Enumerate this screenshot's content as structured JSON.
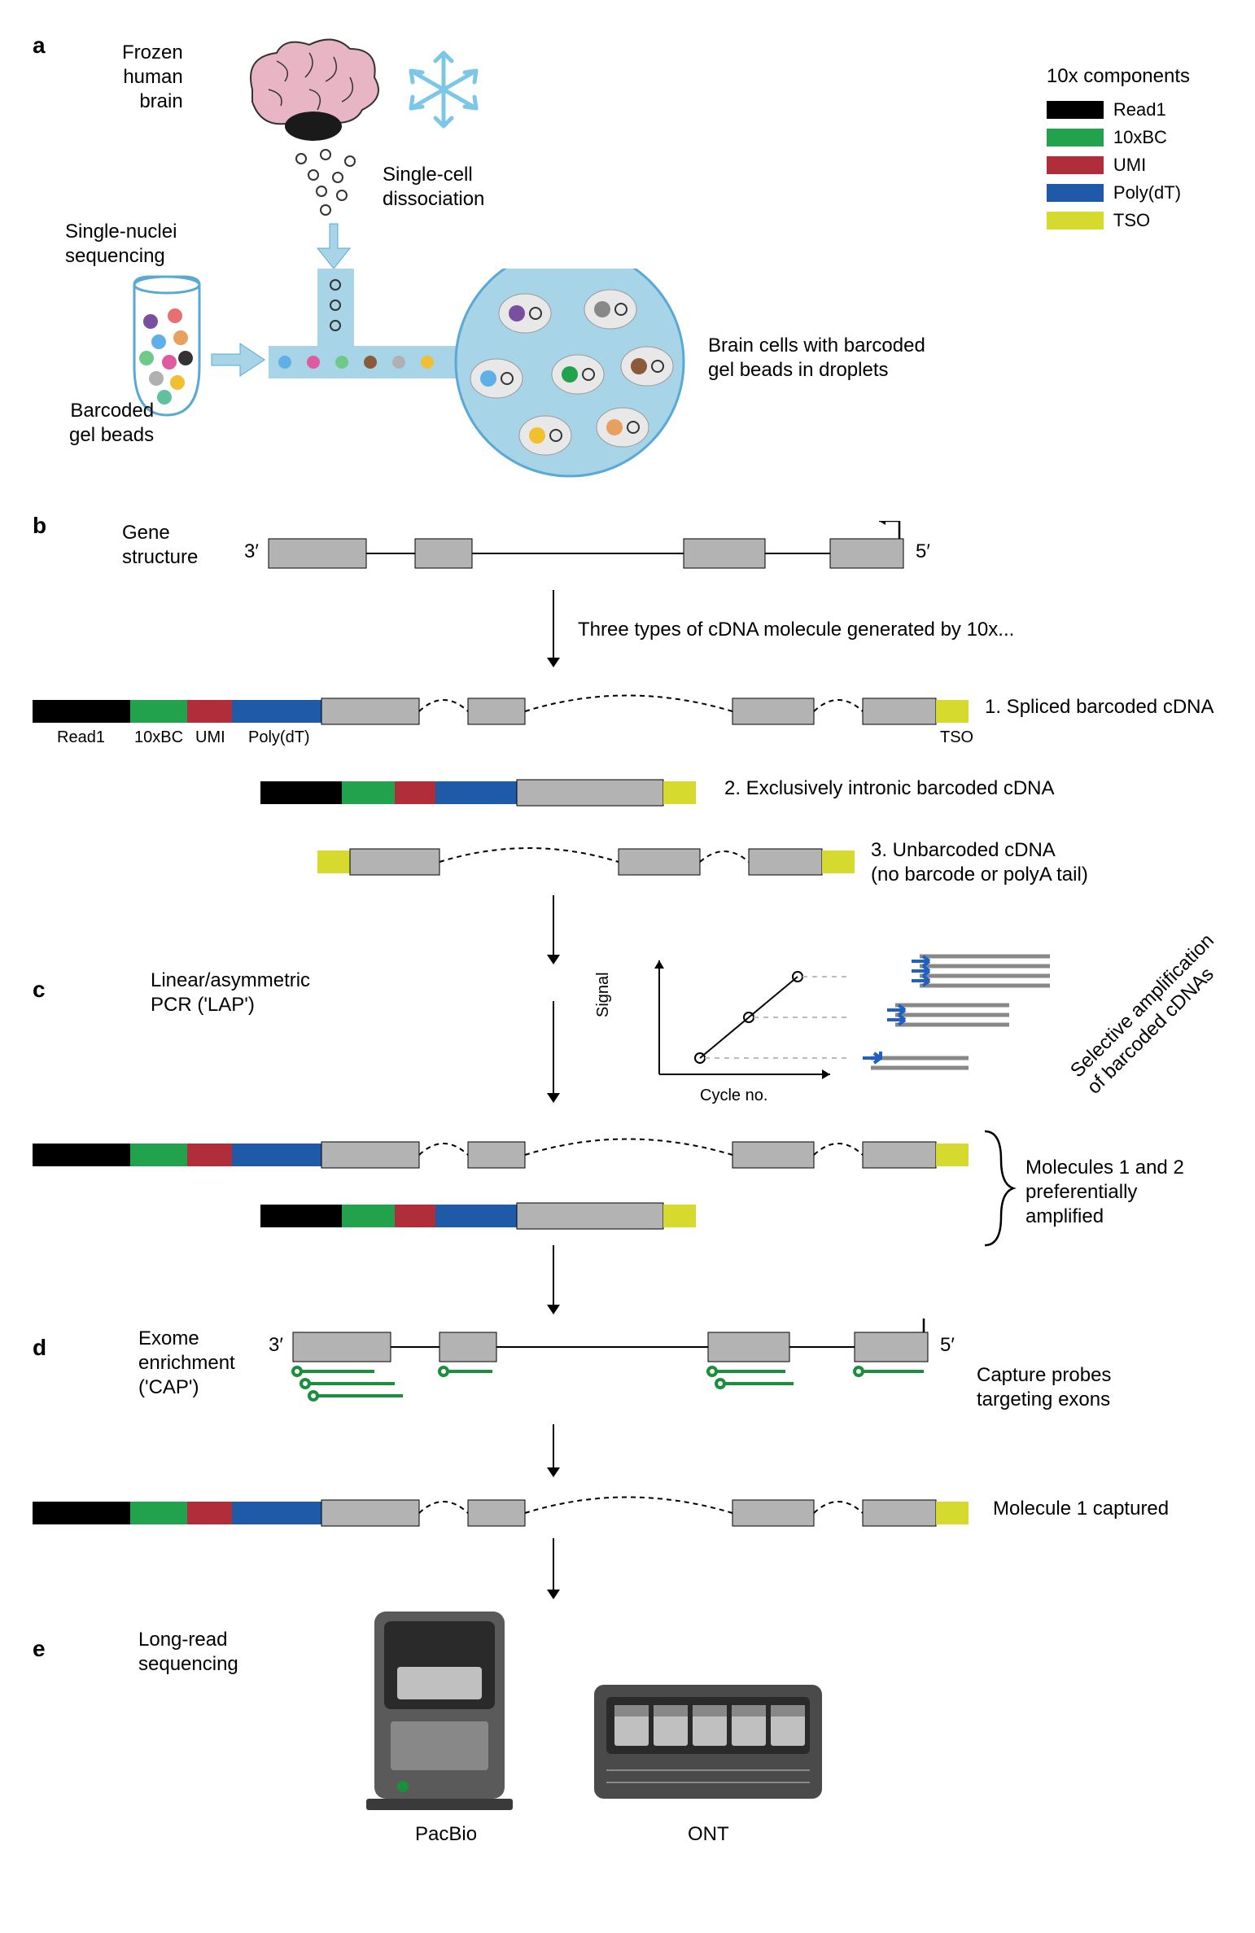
{
  "colors": {
    "read1": "#000000",
    "bc10x": "#23a24d",
    "umi": "#b02e3a",
    "polydt": "#1e5aa8",
    "tso": "#d6d92e",
    "exon": "#b3b3b3",
    "brain_pink": "#e8b5c5",
    "brain_outline": "#333333",
    "snowflake": "#7cc6e8",
    "droplet_blue": "#a8d4e8",
    "droplet_stroke": "#5aa8d4",
    "probe_green": "#1a8f3c",
    "machine_gray": "#5a5a5a",
    "machine_light": "#c0c0c0",
    "arrow_blue": "#2060c0"
  },
  "panelA": {
    "label": "a",
    "brain_label": "Frozen\nhuman\nbrain",
    "dissociation_label": "Single-cell\ndissociation",
    "sequencing_label": "Single-nuclei\nsequencing",
    "beads_label": "Barcoded\ngel beads",
    "droplet_label": "Brain cells with barcoded\ngel beads in droplets",
    "legend_title": "10x components",
    "legend_items": [
      {
        "key": "read1",
        "label": "Read1"
      },
      {
        "key": "bc10x",
        "label": "10xBC"
      },
      {
        "key": "umi",
        "label": "UMI"
      },
      {
        "key": "polydt",
        "label": "Poly(dT)"
      },
      {
        "key": "tso",
        "label": "TSO"
      }
    ],
    "bead_colors": [
      "#7a4fa0",
      "#e86f6f",
      "#5fb0e8",
      "#e8a05f",
      "#6fca8a",
      "#e05aa0",
      "#333333",
      "#b0b0b0",
      "#f0c030",
      "#60c0a0"
    ]
  },
  "panelB": {
    "label": "b",
    "gene_structure_label": "Gene\nstructure",
    "three_prime": "3′",
    "five_prime": "5′",
    "transition_label": "Three types of cDNA molecule generated by 10x...",
    "barcode_labels": [
      "Read1",
      "10xBC",
      "UMI",
      "Poly(dT)"
    ],
    "tso_label": "TSO",
    "type1_label": "1. Spliced barcoded cDNA",
    "type2_label": "2.  Exclusively intronic barcoded cDNA",
    "type3_label": "3. Unbarcoded cDNA\n(no barcode or polyA tail)",
    "exon_widths": [
      120,
      70,
      100,
      90
    ],
    "intron_widths": [
      60,
      260,
      80
    ]
  },
  "panelC": {
    "label": "c",
    "title": "Linear/asymmetric\nPCR ('LAP')",
    "xaxis": "Cycle no.",
    "yaxis": "Signal",
    "diag_label": "Selective amplification\nof barcoded cDNAs",
    "result_label": "Molecules 1 and 2\npreferentially\namplified",
    "chart_points": [
      [
        60,
        140
      ],
      [
        120,
        90
      ],
      [
        180,
        40
      ]
    ]
  },
  "panelD": {
    "label": "d",
    "title": "Exome\nenrichment\n('CAP')",
    "probes_label": "Capture probes\ntargeting exons",
    "captured_label": "Molecule 1 captured"
  },
  "panelE": {
    "label": "e",
    "title": "Long-read\nsequencing",
    "pacbio_label": "PacBio",
    "ont_label": "ONT"
  }
}
